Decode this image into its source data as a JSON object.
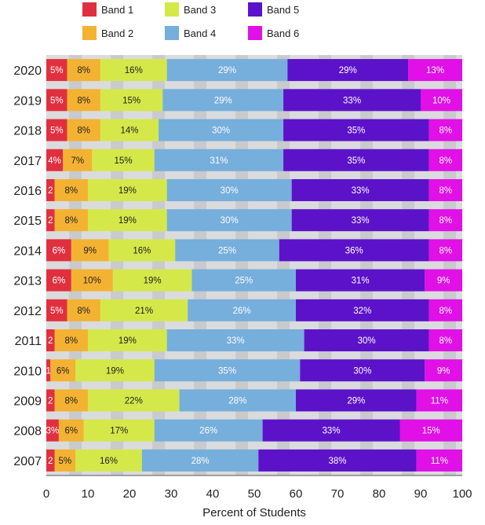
{
  "chart_data": {
    "type": "bar",
    "orientation": "horizontal",
    "stacked": true,
    "title": "",
    "xlabel": "Percent of Students",
    "ylabel": "",
    "xlim": [
      0,
      100
    ],
    "xticks": [
      0,
      10,
      20,
      30,
      40,
      50,
      60,
      70,
      80,
      90,
      100
    ],
    "xtick_labels": [
      "0",
      "10",
      "20",
      "30",
      "40",
      "50",
      "60",
      "70",
      "80",
      "90",
      "100"
    ],
    "grid": true,
    "legend_position": "top",
    "categories": [
      "2020",
      "2019",
      "2018",
      "2017",
      "2016",
      "2015",
      "2014",
      "2013",
      "2012",
      "2011",
      "2010",
      "2009",
      "2008",
      "2007"
    ],
    "series": [
      {
        "name": "Band 1",
        "color": "#e0303f",
        "values": [
          5,
          5,
          5,
          4,
          2,
          2,
          6,
          6,
          5,
          2,
          1,
          2,
          3,
          2
        ],
        "labels": [
          "5%",
          "5%",
          "5%",
          "4%",
          "2",
          "2",
          "6%",
          "6%",
          "5%",
          "2",
          "1",
          "2",
          "3%",
          "2"
        ]
      },
      {
        "name": "Band 2",
        "color": "#f4b233",
        "values": [
          8,
          8,
          8,
          7,
          8,
          8,
          9,
          10,
          8,
          8,
          6,
          8,
          6,
          5
        ],
        "labels": [
          "8%",
          "8%",
          "8%",
          "7%",
          "8%",
          "8%",
          "9%",
          "10%",
          "8%",
          "8%",
          "6%",
          "8%",
          "6%",
          "5%"
        ]
      },
      {
        "name": "Band 3",
        "color": "#d5e84a",
        "values": [
          16,
          15,
          14,
          15,
          19,
          19,
          16,
          19,
          21,
          19,
          19,
          22,
          17,
          16
        ],
        "labels": [
          "16%",
          "15%",
          "14%",
          "15%",
          "19%",
          "19%",
          "16%",
          "19%",
          "21%",
          "19%",
          "19%",
          "22%",
          "17%",
          "16%"
        ]
      },
      {
        "name": "Band 4",
        "color": "#76aedc",
        "values": [
          29,
          29,
          30,
          31,
          30,
          30,
          25,
          25,
          26,
          33,
          35,
          28,
          26,
          28
        ],
        "labels": [
          "29%",
          "29%",
          "30%",
          "31%",
          "30%",
          "30%",
          "25%",
          "25%",
          "26%",
          "33%",
          "35%",
          "28%",
          "26%",
          "28%"
        ]
      },
      {
        "name": "Band 5",
        "color": "#5c12c9",
        "values": [
          29,
          33,
          35,
          35,
          33,
          33,
          36,
          31,
          32,
          30,
          30,
          29,
          33,
          38
        ],
        "labels": [
          "29%",
          "33%",
          "35%",
          "35%",
          "33%",
          "33%",
          "36%",
          "31%",
          "32%",
          "30%",
          "30%",
          "29%",
          "33%",
          "38%"
        ]
      },
      {
        "name": "Band 6",
        "color": "#e010e6",
        "values": [
          13,
          10,
          8,
          8,
          8,
          8,
          8,
          9,
          8,
          8,
          9,
          11,
          15,
          11
        ],
        "labels": [
          "13%",
          "10%",
          "8%",
          "8%",
          "8%",
          "8%",
          "8%",
          "9%",
          "8%",
          "8%",
          "9%",
          "11%",
          "15%",
          "11%"
        ]
      }
    ],
    "label_colors": {
      "light": "#ffffff",
      "dark": "#222222"
    },
    "background_colors": {
      "stripe_light": "#dadbdd",
      "stripe_dark": "#c9cacd",
      "axis_line": "#555555",
      "tick_text": "#222222"
    }
  }
}
